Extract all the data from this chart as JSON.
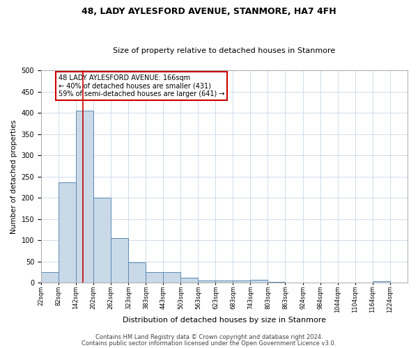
{
  "title1": "48, LADY AYLESFORD AVENUE, STANMORE, HA7 4FH",
  "title2": "Size of property relative to detached houses in Stanmore",
  "xlabel": "Distribution of detached houses by size in Stanmore",
  "ylabel": "Number of detached properties",
  "bar_left_edges": [
    22,
    82,
    142,
    202,
    262,
    323,
    383,
    443,
    503,
    563,
    623,
    683,
    743,
    803,
    863,
    924,
    984,
    1044,
    1104,
    1164
  ],
  "bar_heights": [
    25,
    237,
    405,
    200,
    105,
    48,
    25,
    25,
    12,
    6,
    5,
    5,
    7,
    2,
    1,
    1,
    0,
    0,
    0,
    3
  ],
  "bin_width": 60,
  "bar_color": "#c9d9e8",
  "bar_edge_color": "#5b8ab5",
  "property_x": 166,
  "red_line_color": "#cc0000",
  "ylim": [
    0,
    500
  ],
  "yticks": [
    0,
    50,
    100,
    150,
    200,
    250,
    300,
    350,
    400,
    450,
    500
  ],
  "xtick_labels": [
    "22sqm",
    "82sqm",
    "142sqm",
    "202sqm",
    "262sqm",
    "323sqm",
    "383sqm",
    "443sqm",
    "503sqm",
    "563sqm",
    "623sqm",
    "683sqm",
    "743sqm",
    "803sqm",
    "863sqm",
    "924sqm",
    "984sqm",
    "1044sqm",
    "1104sqm",
    "1164sqm",
    "1224sqm"
  ],
  "xtick_positions": [
    22,
    82,
    142,
    202,
    262,
    323,
    383,
    443,
    503,
    563,
    623,
    683,
    743,
    803,
    863,
    924,
    984,
    1044,
    1104,
    1164,
    1224
  ],
  "annotation_text": "48 LADY AYLESFORD AVENUE: 166sqm\n← 40% of detached houses are smaller (431)\n59% of semi-detached houses are larger (641) →",
  "annotation_box_color": "#ffffff",
  "annotation_box_edge_color": "#cc0000",
  "footer1": "Contains HM Land Registry data © Crown copyright and database right 2024.",
  "footer2": "Contains public sector information licensed under the Open Government Licence v3.0.",
  "background_color": "#ffffff",
  "grid_color": "#c8d8e8",
  "xlim_left": 22,
  "xlim_right": 1284
}
